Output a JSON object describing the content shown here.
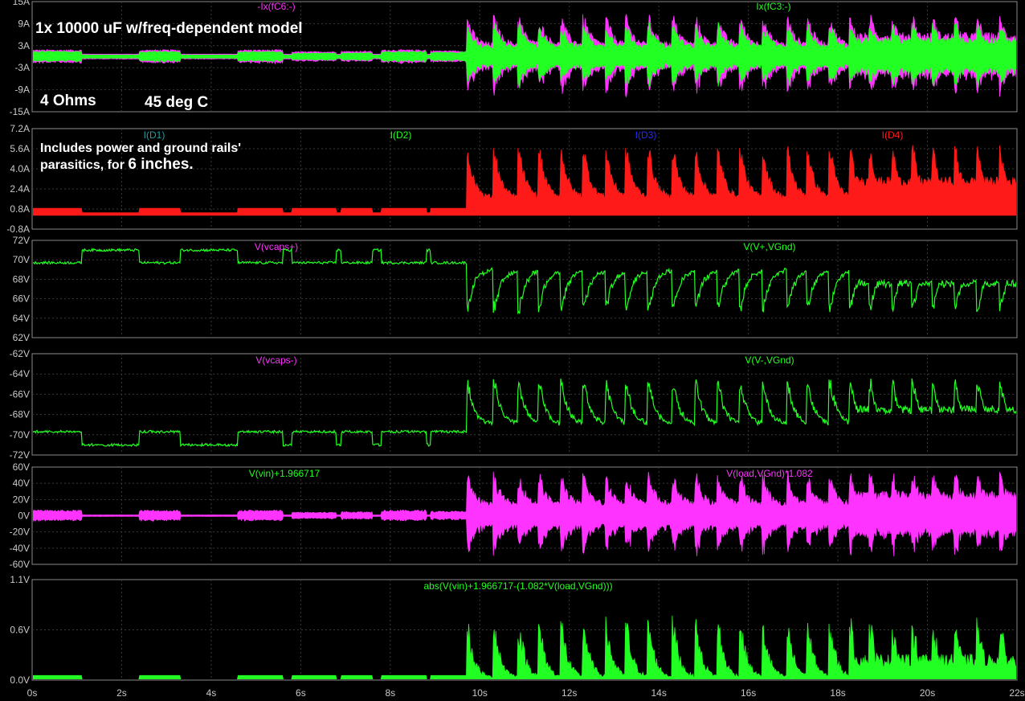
{
  "colors": {
    "background": "#000000",
    "frame": "#8a8a8a",
    "grid": "#3a3a3a",
    "tick_text": "#c8c8c8",
    "green": "#22ff22",
    "magenta": "#ff33ff",
    "red": "#ff1a1a",
    "blue": "#2a2aff",
    "teal": "#20a0a0",
    "white": "#ffffff"
  },
  "annotations": {
    "model": "1x 10000 uF w/freq-dependent model",
    "load": "4 Ohms",
    "temp": "45 deg C",
    "parasitics_line1": "Includes power and ground rails'",
    "parasitics_line2a": "parasitics, for ",
    "parasitics_line2b": "6 inches."
  },
  "chart_data": [
    {
      "type": "line",
      "x_ticks": [
        "0s",
        "2s",
        "4s",
        "6s",
        "8s",
        "10s",
        "12s",
        "14s",
        "16s",
        "18s",
        "20s",
        "22s"
      ],
      "xlim": [
        0,
        22
      ],
      "ylim": [
        -15,
        15
      ],
      "y_ticks": [
        "15A",
        "9A",
        "3A",
        "-3A",
        "-9A",
        "-15A"
      ],
      "series": [
        {
          "name": "-Ix(fC6:-)",
          "color": "#ff33ff"
        },
        {
          "name": "Ix(fC3:-)",
          "color": "#22ff22"
        }
      ]
    },
    {
      "type": "area",
      "xlim": [
        0,
        22
      ],
      "ylim": [
        -0.8,
        7.2
      ],
      "y_ticks": [
        "7.2A",
        "5.6A",
        "4.0A",
        "2.4A",
        "0.8A",
        "-0.8A"
      ],
      "series": [
        {
          "name": "I(D1)",
          "color": "#20a0a0"
        },
        {
          "name": "I(D2)",
          "color": "#22ff22"
        },
        {
          "name": "I(D3)",
          "color": "#2a2aff"
        },
        {
          "name": "I(D4)",
          "color": "#ff1a1a"
        }
      ]
    },
    {
      "type": "line",
      "xlim": [
        0,
        22
      ],
      "ylim": [
        62,
        72
      ],
      "y_ticks": [
        "72V",
        "70V",
        "68V",
        "66V",
        "64V",
        "62V"
      ],
      "series": [
        {
          "name": "V(vcaps+)",
          "color": "#ff33ff"
        },
        {
          "name": "V(V+,VGnd)",
          "color": "#22ff22"
        }
      ]
    },
    {
      "type": "line",
      "xlim": [
        0,
        22
      ],
      "ylim": [
        -72,
        -62
      ],
      "y_ticks": [
        "-62V",
        "-64V",
        "-66V",
        "-68V",
        "-70V",
        "-72V"
      ],
      "series": [
        {
          "name": "V(vcaps-)",
          "color": "#ff33ff"
        },
        {
          "name": "V(V-,VGnd)",
          "color": "#22ff22"
        }
      ]
    },
    {
      "type": "line",
      "xlim": [
        0,
        22
      ],
      "ylim": [
        -60,
        60
      ],
      "y_ticks": [
        "60V",
        "40V",
        "20V",
        "0V",
        "-20V",
        "-40V",
        "-60V"
      ],
      "series": [
        {
          "name": "V(vin)+1.966717",
          "color": "#22ff22"
        },
        {
          "name": "V(load,VGnd)*1.082",
          "color": "#ff33ff"
        }
      ]
    },
    {
      "type": "line",
      "xlim": [
        0,
        22
      ],
      "ylim": [
        0,
        1.1
      ],
      "y_ticks": [
        "1.1V",
        "0.6V",
        "0.0V"
      ],
      "series": [
        {
          "name": "abs(V(vin)+1.966717-(1.082*V(load,VGnd)))",
          "color": "#22ff22"
        }
      ]
    }
  ]
}
